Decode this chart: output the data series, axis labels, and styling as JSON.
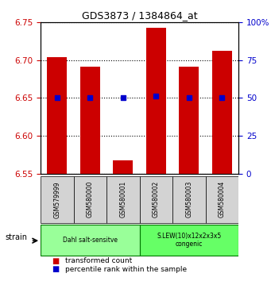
{
  "title": "GDS3873 / 1384864_at",
  "samples": [
    "GSM579999",
    "GSM580000",
    "GSM580001",
    "GSM580002",
    "GSM580003",
    "GSM580004"
  ],
  "bar_values": [
    6.704,
    6.692,
    6.567,
    6.743,
    6.691,
    6.713
  ],
  "bar_bottom": 6.55,
  "percentile_values": [
    6.65,
    6.65,
    6.65,
    6.653,
    6.65,
    6.65
  ],
  "percentile_ranks": [
    50,
    50,
    50,
    50,
    50,
    50
  ],
  "ylim": [
    6.55,
    6.75
  ],
  "yticks": [
    6.55,
    6.6,
    6.65,
    6.7,
    6.75
  ],
  "right_yticks": [
    0,
    25,
    50,
    75,
    100
  ],
  "right_ylim_map": {
    "6.55": 0,
    "6.75": 100
  },
  "bar_color": "#cc0000",
  "percentile_color": "#0000cc",
  "bar_width": 0.6,
  "group1_samples": [
    "GSM579999",
    "GSM580000",
    "GSM580001"
  ],
  "group2_samples": [
    "GSM580002",
    "GSM580003",
    "GSM580004"
  ],
  "group1_label": "Dahl salt-sensitve",
  "group2_label": "S.LEW(10)x12x2x3x5\ncongenic",
  "group1_color": "#99ff99",
  "group2_color": "#66ff66",
  "strain_label": "strain",
  "xlabel": "strain",
  "ylabel_left": "",
  "ylabel_right": "",
  "legend_bar_label": "transformed count",
  "legend_pct_label": "percentile rank within the sample",
  "tick_color_left": "#cc0000",
  "tick_color_right": "#0000cc",
  "grid_color": "black",
  "background_color": "#ffffff"
}
